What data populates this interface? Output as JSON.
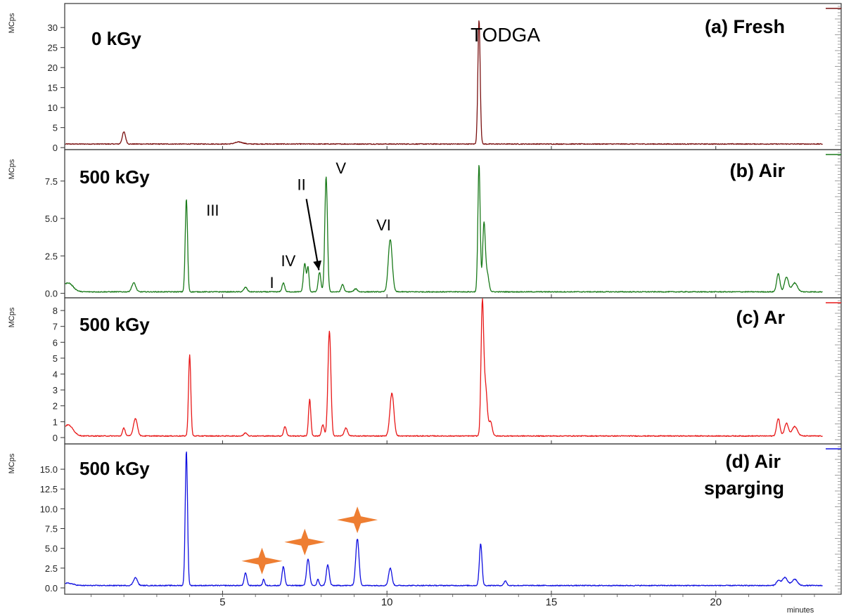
{
  "chart_data": {
    "type": "line",
    "xlabel": "minutes",
    "xlim": [
      0.2,
      23.3
    ],
    "x_ticks": [
      5,
      10,
      15,
      20
    ],
    "x_tick_labels": [
      "5",
      "10",
      "15",
      "20"
    ],
    "panels": [
      {
        "id": "a",
        "ylabel": "MCps",
        "dose_label": "0 kGy",
        "condition_label": [
          "(a) Fresh"
        ],
        "color": "#7a1010",
        "ylim": [
          -0.5,
          36
        ],
        "y_ticks": [
          0,
          5,
          10,
          15,
          20,
          25,
          30
        ],
        "y_tick_labels": [
          "0",
          "5",
          "10",
          "15",
          "20",
          "25",
          "30"
        ],
        "baseline": 0.9,
        "peaks": [
          [
            2.0,
            3.0,
            0.05
          ],
          [
            5.5,
            0.5,
            0.12
          ],
          [
            12.8,
            31.0,
            0.035
          ]
        ],
        "annotations": [
          {
            "text": "TODGA",
            "x": 13.6,
            "y": 26.5
          }
        ]
      },
      {
        "id": "b",
        "ylabel": "MCps",
        "dose_label": "500 kGy",
        "condition_label": [
          "(b) Air"
        ],
        "color": "#1a7a1a",
        "ylim": [
          -0.3,
          9.6
        ],
        "y_ticks": [
          0,
          2.5,
          5,
          7.5
        ],
        "y_tick_labels": [
          "0.0",
          "2.5",
          "5.0",
          "7.5"
        ],
        "baseline": 0.1,
        "peaks": [
          [
            0.3,
            0.6,
            0.15
          ],
          [
            2.3,
            0.6,
            0.06
          ],
          [
            3.9,
            6.2,
            0.035
          ],
          [
            5.7,
            0.3,
            0.05
          ],
          [
            6.85,
            0.6,
            0.04
          ],
          [
            7.5,
            1.9,
            0.04
          ],
          [
            7.6,
            1.6,
            0.03
          ],
          [
            7.95,
            1.3,
            0.04
          ],
          [
            8.15,
            7.7,
            0.04
          ],
          [
            8.65,
            0.5,
            0.04
          ],
          [
            9.05,
            0.2,
            0.05
          ],
          [
            10.1,
            3.5,
            0.06
          ],
          [
            12.8,
            8.5,
            0.035
          ],
          [
            12.95,
            4.5,
            0.04
          ],
          [
            13.05,
            1.2,
            0.05
          ],
          [
            21.9,
            1.2,
            0.05
          ],
          [
            22.15,
            1.0,
            0.06
          ],
          [
            22.4,
            0.6,
            0.08
          ]
        ],
        "annotations": [
          {
            "text": "III",
            "x": 4.7,
            "y": 5.2
          },
          {
            "text": "I",
            "x": 6.5,
            "y": 0.35
          },
          {
            "text": "IV",
            "x": 7.0,
            "y": 1.8
          },
          {
            "text": "II",
            "x": 7.4,
            "y": 6.9
          },
          {
            "text": "V",
            "x": 8.6,
            "y": 8.0
          },
          {
            "text": "VI",
            "x": 9.9,
            "y": 4.2
          }
        ]
      },
      {
        "id": "c",
        "ylabel": "MCps",
        "dose_label": "500 kGy",
        "condition_label": [
          "(c) Ar"
        ],
        "color": "#e81818",
        "ylim": [
          -0.4,
          8.8
        ],
        "y_ticks": [
          0,
          1,
          2,
          3,
          4,
          5,
          6,
          7,
          8
        ],
        "y_tick_labels": [
          "0",
          "1",
          "2",
          "3",
          "4",
          "5",
          "6",
          "7",
          "8"
        ],
        "baseline": 0.1,
        "peaks": [
          [
            0.3,
            0.7,
            0.15
          ],
          [
            2.0,
            0.5,
            0.04
          ],
          [
            2.35,
            1.1,
            0.06
          ],
          [
            4.0,
            5.1,
            0.035
          ],
          [
            5.7,
            0.2,
            0.05
          ],
          [
            6.9,
            0.6,
            0.04
          ],
          [
            7.65,
            2.3,
            0.035
          ],
          [
            8.05,
            0.7,
            0.04
          ],
          [
            8.25,
            6.6,
            0.045
          ],
          [
            8.75,
            0.5,
            0.05
          ],
          [
            10.15,
            2.7,
            0.06
          ],
          [
            12.9,
            8.2,
            0.04
          ],
          [
            13.0,
            3.0,
            0.05
          ],
          [
            13.15,
            0.9,
            0.05
          ],
          [
            21.9,
            1.1,
            0.05
          ],
          [
            22.15,
            0.8,
            0.06
          ],
          [
            22.4,
            0.6,
            0.08
          ]
        ],
        "annotations": []
      },
      {
        "id": "d",
        "ylabel": "MCps",
        "dose_label": "500 kGy",
        "condition_label": [
          "(d) Air",
          "sparging"
        ],
        "color": "#1010e0",
        "ylim": [
          -0.8,
          18.2
        ],
        "y_ticks": [
          0,
          2.5,
          5,
          7.5,
          10,
          12.5,
          15
        ],
        "y_tick_labels": [
          "0.0",
          "2.5",
          "5.0",
          "7.5",
          "10.0",
          "12.5",
          "15.0"
        ],
        "baseline": 0.3,
        "peaks": [
          [
            0.3,
            0.3,
            0.15
          ],
          [
            2.35,
            1.0,
            0.06
          ],
          [
            3.9,
            17.0,
            0.035
          ],
          [
            5.7,
            1.6,
            0.04
          ],
          [
            6.25,
            0.8,
            0.03
          ],
          [
            6.85,
            2.4,
            0.04
          ],
          [
            7.6,
            3.4,
            0.045
          ],
          [
            7.9,
            0.8,
            0.03
          ],
          [
            8.2,
            2.6,
            0.045
          ],
          [
            9.1,
            5.9,
            0.05
          ],
          [
            10.1,
            2.2,
            0.05
          ],
          [
            12.85,
            5.3,
            0.04
          ],
          [
            13.6,
            0.6,
            0.04
          ],
          [
            21.9,
            0.6,
            0.06
          ],
          [
            22.1,
            1.0,
            0.08
          ],
          [
            22.4,
            0.8,
            0.08
          ]
        ],
        "annotations": [],
        "star_markers": [
          {
            "x": 6.2,
            "y": 3.4
          },
          {
            "x": 7.5,
            "y": 5.8
          },
          {
            "x": 9.1,
            "y": 8.6
          }
        ],
        "star_color": "#ee7e32"
      }
    ]
  }
}
